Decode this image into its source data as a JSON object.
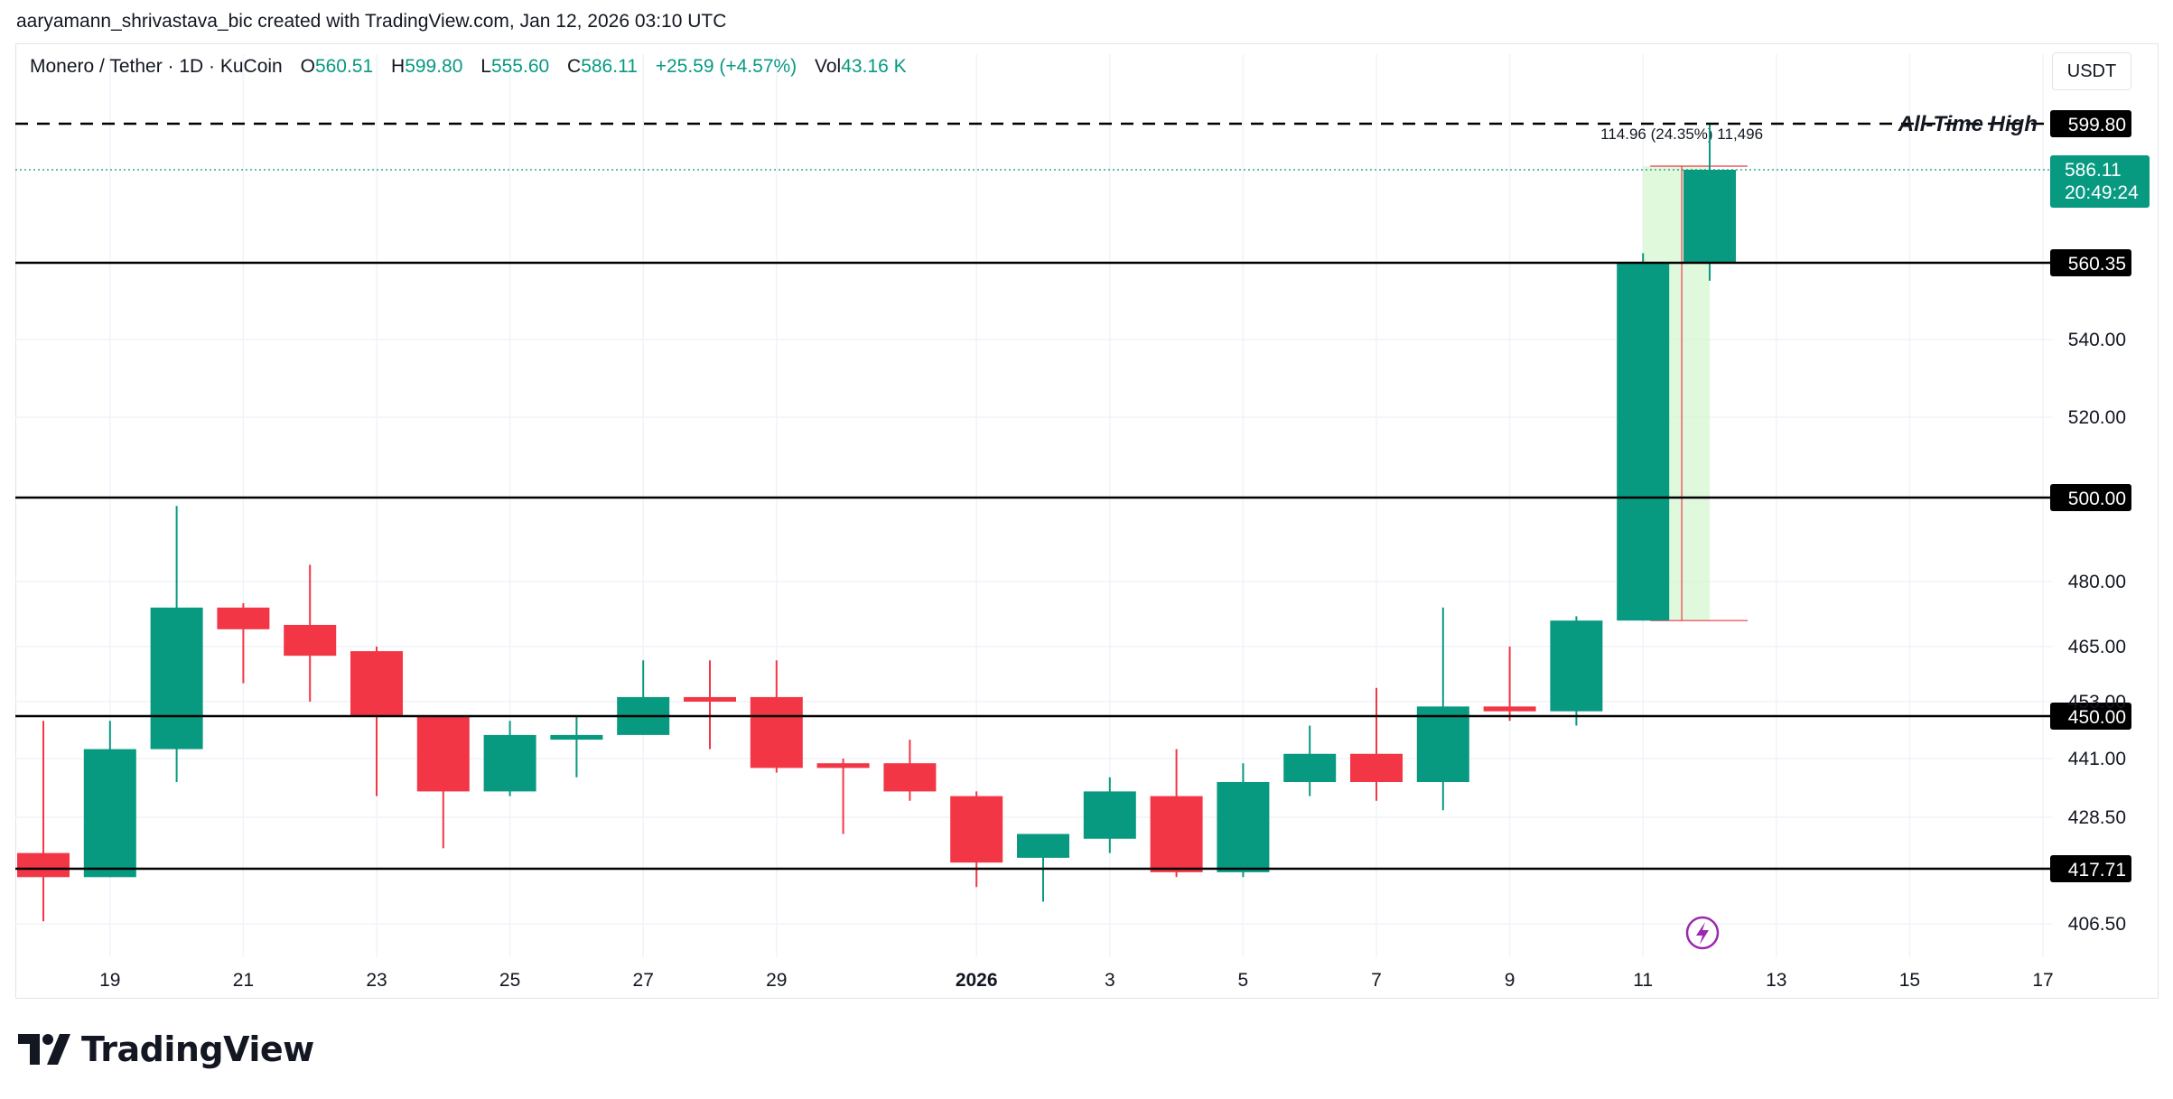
{
  "credit": "aaryamann_shrivastava_bic created with TradingView.com, Jan 12, 2026 03:10 UTC",
  "legend": {
    "symbol": "Monero / Tether · 1D · KuCoin",
    "o_label": "O",
    "o_value": "560.51",
    "h_label": "H",
    "h_value": "599.80",
    "l_label": "L",
    "l_value": "555.60",
    "c_label": "C",
    "c_value": "586.11",
    "change": "+25.59 (+4.57%)",
    "vol_label": "Vol",
    "vol_value": "43.16 K"
  },
  "currency": "USDT",
  "brand": "TradingView",
  "colors": {
    "up": "#089981",
    "down": "#f23645",
    "grid": "#f0f3fa",
    "measure_fill": "#ccf5c4",
    "ath_label": "#131722",
    "alert_icon": "#9c27b0"
  },
  "chart_data": {
    "type": "candlestick",
    "x_tick_labels": [
      "19",
      "21",
      "23",
      "25",
      "27",
      "29",
      "2026",
      "3",
      "5",
      "7",
      "9",
      "11",
      "13",
      "15",
      "17"
    ],
    "y_tick_labels": [
      "540.00",
      "520.00",
      "480.00",
      "465.00",
      "453.00",
      "441.00",
      "428.50",
      "406.50"
    ],
    "candles": [
      {
        "date": "2025-12-18",
        "o": 421,
        "h": 449,
        "l": 407,
        "c": 416
      },
      {
        "date": "2025-12-19",
        "o": 416,
        "h": 449,
        "l": 416,
        "c": 443
      },
      {
        "date": "2025-12-20",
        "o": 443,
        "h": 498,
        "l": 436,
        "c": 474
      },
      {
        "date": "2025-12-21",
        "o": 474,
        "h": 475,
        "l": 457,
        "c": 469
      },
      {
        "date": "2025-12-22",
        "o": 470,
        "h": 484,
        "l": 453,
        "c": 463
      },
      {
        "date": "2025-12-23",
        "o": 464,
        "h": 465,
        "l": 433,
        "c": 450
      },
      {
        "date": "2025-12-24",
        "o": 450,
        "h": 450,
        "l": 422,
        "c": 434
      },
      {
        "date": "2025-12-25",
        "o": 434,
        "h": 449,
        "l": 433,
        "c": 446
      },
      {
        "date": "2025-12-26",
        "o": 445,
        "h": 450,
        "l": 437,
        "c": 446
      },
      {
        "date": "2025-12-27",
        "o": 446,
        "h": 462,
        "l": 446,
        "c": 454
      },
      {
        "date": "2025-12-28",
        "o": 454,
        "h": 462,
        "l": 443,
        "c": 453
      },
      {
        "date": "2025-12-29",
        "o": 454,
        "h": 462,
        "l": 438,
        "c": 439
      },
      {
        "date": "2025-12-30",
        "o": 440,
        "h": 441,
        "l": 425,
        "c": 439
      },
      {
        "date": "2025-12-31",
        "o": 440,
        "h": 445,
        "l": 432,
        "c": 434
      },
      {
        "date": "2026-01-01",
        "o": 433,
        "h": 434,
        "l": 414,
        "c": 419
      },
      {
        "date": "2026-01-02",
        "o": 420,
        "h": 425,
        "l": 411,
        "c": 425
      },
      {
        "date": "2026-01-03",
        "o": 424,
        "h": 437,
        "l": 421,
        "c": 434
      },
      {
        "date": "2026-01-04",
        "o": 433,
        "h": 443,
        "l": 416,
        "c": 417
      },
      {
        "date": "2026-01-05",
        "o": 417,
        "h": 440,
        "l": 416,
        "c": 436
      },
      {
        "date": "2026-01-06",
        "o": 436,
        "h": 448,
        "l": 433,
        "c": 442
      },
      {
        "date": "2026-01-07",
        "o": 442,
        "h": 456,
        "l": 432,
        "c": 436
      },
      {
        "date": "2026-01-08",
        "o": 436,
        "h": 474,
        "l": 430,
        "c": 452
      },
      {
        "date": "2026-01-09",
        "o": 452,
        "h": 465,
        "l": 449,
        "c": 451
      },
      {
        "date": "2026-01-10",
        "o": 451,
        "h": 472,
        "l": 448,
        "c": 471
      },
      {
        "date": "2026-01-11",
        "o": 471,
        "h": 563,
        "l": 471,
        "c": 560.35
      },
      {
        "date": "2026-01-12",
        "o": 560.51,
        "h": 599.8,
        "l": 555.6,
        "c": 586.11
      }
    ],
    "horizontal_levels": [
      {
        "value": 599.8,
        "label": "599.80",
        "style": "dashed",
        "annotation": "All-Time High"
      },
      {
        "value": 560.35,
        "label": "560.35",
        "style": "solid"
      },
      {
        "value": 500.0,
        "label": "500.00",
        "style": "solid"
      },
      {
        "value": 450.0,
        "label": "450.00",
        "style": "solid"
      },
      {
        "value": 417.71,
        "label": "417.71",
        "style": "solid"
      }
    ],
    "last_price": {
      "value": 586.11,
      "label": "586.11",
      "countdown": "20:49:24"
    },
    "measure": {
      "from": 471,
      "to": 586.11,
      "text": "114.96 (24.35%) 11,496"
    }
  }
}
